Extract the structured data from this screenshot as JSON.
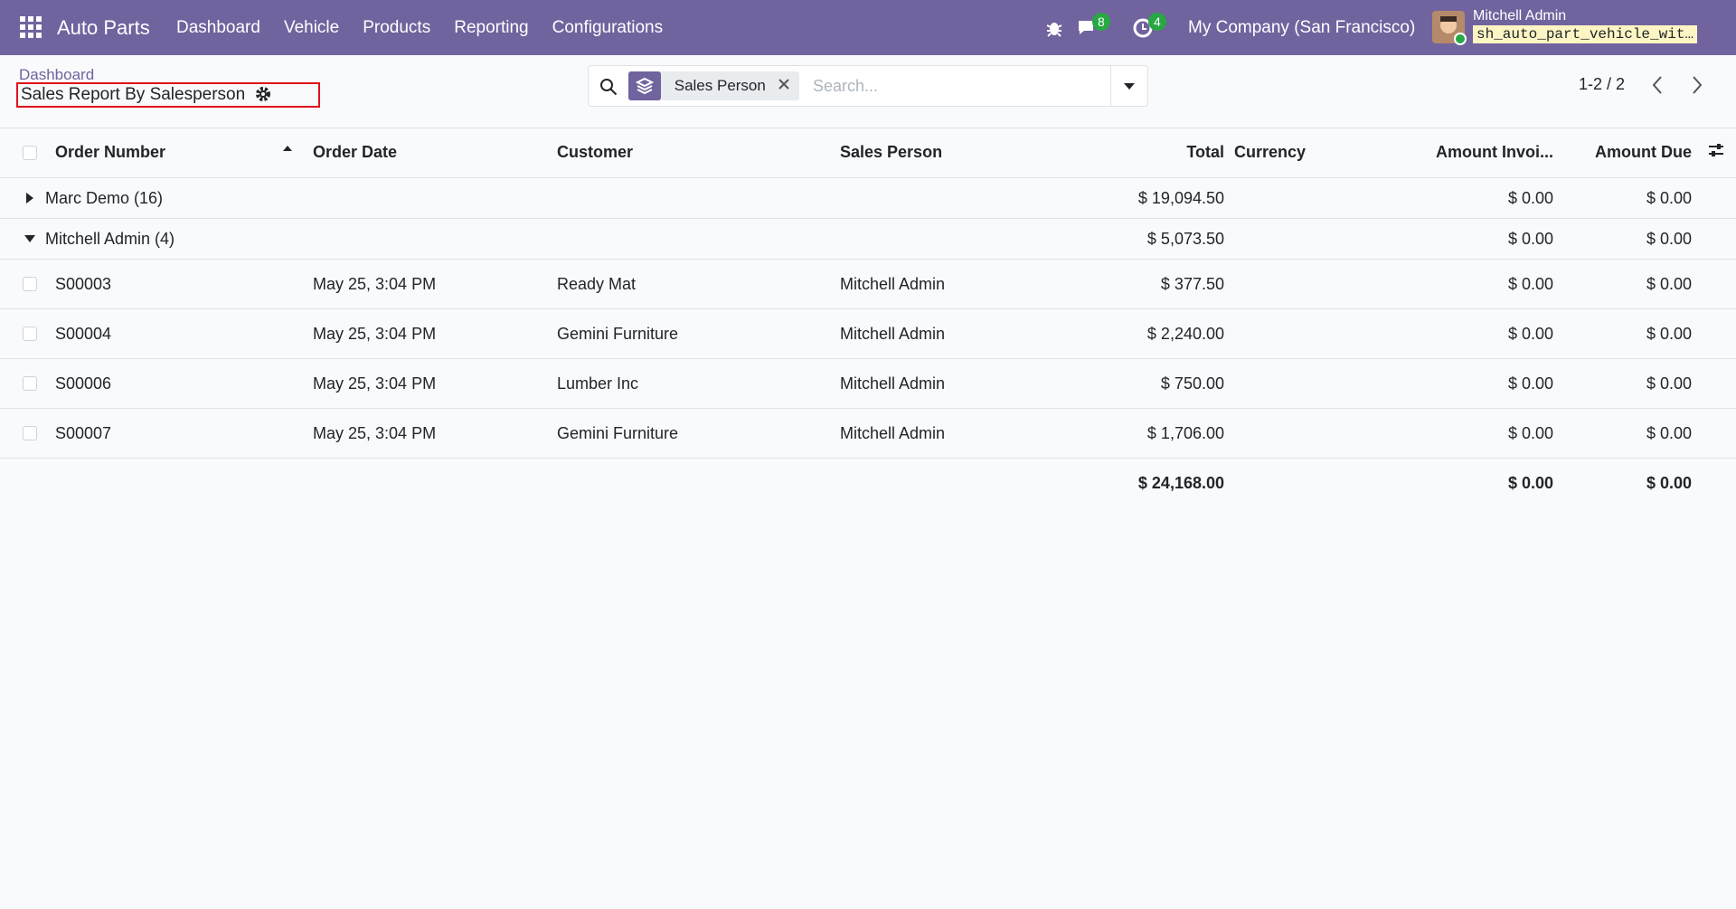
{
  "navbar": {
    "app_name": "Auto Parts",
    "menu": [
      "Dashboard",
      "Vehicle",
      "Products",
      "Reporting",
      "Configurations"
    ],
    "messages_badge": 8,
    "activities_badge": 4,
    "company": "My Company (San Francisco)",
    "user": "Mitchell Admin",
    "database": "sh_auto_part_vehicle_wit…"
  },
  "control_panel": {
    "breadcrumb": "Dashboard",
    "title": "Sales Report By Salesperson",
    "facet": "Sales Person",
    "search_placeholder": "Search...",
    "pager": "1-2 / 2"
  },
  "table": {
    "headers": [
      "Order Number",
      "Order Date",
      "Customer",
      "Sales Person",
      "Total",
      "Currency",
      "Amount Invoi...",
      "Amount Due"
    ],
    "groups": [
      {
        "label": "Marc Demo (16)",
        "expanded": false,
        "total": "$ 19,094.50",
        "amount_invoiced": "$ 0.00",
        "amount_due": "$ 0.00",
        "rows": []
      },
      {
        "label": "Mitchell Admin (4)",
        "expanded": true,
        "total": "$ 5,073.50",
        "amount_invoiced": "$ 0.00",
        "amount_due": "$ 0.00",
        "rows": [
          {
            "order": "S00003",
            "date": "May 25, 3:04 PM",
            "customer": "Ready Mat",
            "salesperson": "Mitchell Admin",
            "total": "$ 377.50",
            "amount_invoiced": "$ 0.00",
            "amount_due": "$ 0.00"
          },
          {
            "order": "S00004",
            "date": "May 25, 3:04 PM",
            "customer": "Gemini Furniture",
            "salesperson": "Mitchell Admin",
            "total": "$ 2,240.00",
            "amount_invoiced": "$ 0.00",
            "amount_due": "$ 0.00"
          },
          {
            "order": "S00006",
            "date": "May 25, 3:04 PM",
            "customer": "Lumber Inc",
            "salesperson": "Mitchell Admin",
            "total": "$ 750.00",
            "amount_invoiced": "$ 0.00",
            "amount_due": "$ 0.00"
          },
          {
            "order": "S00007",
            "date": "May 25, 3:04 PM",
            "customer": "Gemini Furniture",
            "salesperson": "Mitchell Admin",
            "total": "$ 1,706.00",
            "amount_invoiced": "$ 0.00",
            "amount_due": "$ 0.00"
          }
        ]
      }
    ],
    "footer": {
      "total": "$ 24,168.00",
      "amount_invoiced": "$ 0.00",
      "amount_due": "$ 0.00"
    }
  }
}
